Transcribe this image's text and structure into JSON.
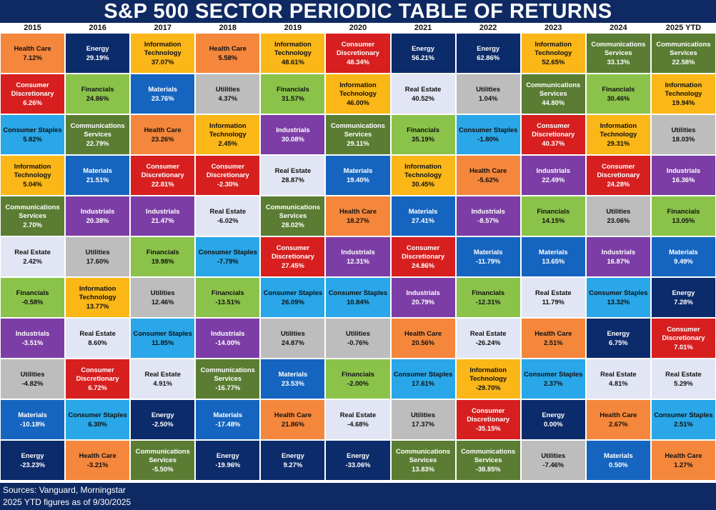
{
  "title": "S&P 500 SECTOR PERIODIC TABLE OF RETURNS",
  "footer": {
    "sources": "Sources: Vanguard, Morningstar",
    "note": "2025 YTD figures as of 9/30/2025"
  },
  "colors": {
    "Health Care": "#f5873c",
    "Consumer Discretionary": "#d71f1f",
    "Consumer Staples": "#29a7e8",
    "Information Technology": "#fbb717",
    "Communications Services": "#5a7d33",
    "Real Estate": "#e2e6f4",
    "Financials": "#8bc34a",
    "Industrials": "#7c3ea6",
    "Utilities": "#bdbdbd",
    "Materials": "#1565c0",
    "Energy": "#0c2b6a"
  },
  "text_colors": {
    "Health Care": "#111111",
    "Consumer Discretionary": "#ffffff",
    "Consumer Staples": "#111111",
    "Information Technology": "#111111",
    "Communications Services": "#ffffff",
    "Real Estate": "#111111",
    "Financials": "#111111",
    "Industrials": "#ffffff",
    "Utilities": "#111111",
    "Materials": "#ffffff",
    "Energy": "#ffffff"
  },
  "chart_data": {
    "type": "table",
    "title": "S&P 500 SECTOR PERIODIC TABLE OF RETURNS",
    "years": [
      "2015",
      "2016",
      "2017",
      "2018",
      "2019",
      "2020",
      "2021",
      "2022",
      "2023",
      "2024",
      "2025 YTD"
    ],
    "columns": [
      [
        {
          "sector": "Health Care",
          "label": "Health Care",
          "value": "7.12%"
        },
        {
          "sector": "Consumer Discretionary",
          "label": "Consumer\nDiscretionary",
          "value": "6.26%"
        },
        {
          "sector": "Consumer Staples",
          "label": "Consumer Staples",
          "value": "5.82%"
        },
        {
          "sector": "Information Technology",
          "label": "Information\nTechnology",
          "value": "5.04%"
        },
        {
          "sector": "Communications Services",
          "label": "Communications\nServices",
          "value": "2.70%"
        },
        {
          "sector": "Real Estate",
          "label": "Real Estate",
          "value": "2.42%"
        },
        {
          "sector": "Financials",
          "label": "Financials",
          "value": "-0.58%"
        },
        {
          "sector": "Industrials",
          "label": "Industrials",
          "value": "-3.51%"
        },
        {
          "sector": "Utilities",
          "label": "Utilities",
          "value": "-4.82%"
        },
        {
          "sector": "Materials",
          "label": "Materials",
          "value": "-10.18%"
        },
        {
          "sector": "Energy",
          "label": "Energy",
          "value": "-23.23%"
        }
      ],
      [
        {
          "sector": "Energy",
          "label": "Energy",
          "value": "29.19%"
        },
        {
          "sector": "Financials",
          "label": "Financials",
          "value": "24.86%"
        },
        {
          "sector": "Communications Services",
          "label": "Communications\nServices",
          "value": "22.79%"
        },
        {
          "sector": "Materials",
          "label": "Materials",
          "value": "21.51%"
        },
        {
          "sector": "Industrials",
          "label": "Industrials",
          "value": "20.38%"
        },
        {
          "sector": "Utilities",
          "label": "Utilities",
          "value": "17.60%"
        },
        {
          "sector": "Information Technology",
          "label": "Information\nTechnology",
          "value": "13.77%"
        },
        {
          "sector": "Real Estate",
          "label": "Real Estate",
          "value": "8.60%"
        },
        {
          "sector": "Consumer Discretionary",
          "label": "Consumer\nDiscretionary",
          "value": "6.72%"
        },
        {
          "sector": "Consumer Staples",
          "label": "Consumer Staples",
          "value": "6.30%"
        },
        {
          "sector": "Health Care",
          "label": "Health Care",
          "value": "-3.21%"
        }
      ],
      [
        {
          "sector": "Information Technology",
          "label": "Information\nTechnology",
          "value": "37.07%"
        },
        {
          "sector": "Materials",
          "label": "Materials",
          "value": "23.76%"
        },
        {
          "sector": "Health Care",
          "label": "Health Care",
          "value": "23.26%"
        },
        {
          "sector": "Consumer Discretionary",
          "label": "Consumer\nDiscretionary",
          "value": "22.81%"
        },
        {
          "sector": "Industrials",
          "label": "Industrials",
          "value": "21.47%"
        },
        {
          "sector": "Financials",
          "label": "Financials",
          "value": "19.98%"
        },
        {
          "sector": "Utilities",
          "label": "Utilities",
          "value": "12.46%"
        },
        {
          "sector": "Consumer Staples",
          "label": "Consumer Staples",
          "value": "11.85%"
        },
        {
          "sector": "Real Estate",
          "label": "Real Estate",
          "value": "4.91%"
        },
        {
          "sector": "Energy",
          "label": "Energy",
          "value": "-2.50%"
        },
        {
          "sector": "Communications Services",
          "label": "Communications\nServices",
          "value": "-5.50%"
        }
      ],
      [
        {
          "sector": "Health Care",
          "label": "Health Care",
          "value": "5.58%"
        },
        {
          "sector": "Utilities",
          "label": "Utilities",
          "value": "4.37%"
        },
        {
          "sector": "Information Technology",
          "label": "Information\nTechnology",
          "value": "2.45%"
        },
        {
          "sector": "Consumer Discretionary",
          "label": "Consumer\nDiscretionary",
          "value": "-2.30%"
        },
        {
          "sector": "Real Estate",
          "label": "Real Estate",
          "value": "-6.02%"
        },
        {
          "sector": "Consumer Staples",
          "label": "Consumer Staples",
          "value": "-7.79%"
        },
        {
          "sector": "Financials",
          "label": "Financials",
          "value": "-13.51%"
        },
        {
          "sector": "Industrials",
          "label": "Industrials",
          "value": "-14.00%"
        },
        {
          "sector": "Communications Services",
          "label": "Communications\nServices",
          "value": "-16.77%"
        },
        {
          "sector": "Materials",
          "label": "Materials",
          "value": "-17.48%"
        },
        {
          "sector": "Energy",
          "label": "Energy",
          "value": "-19.96%"
        }
      ],
      [
        {
          "sector": "Information Technology",
          "label": "Information\nTechnology",
          "value": "48.61%"
        },
        {
          "sector": "Financials",
          "label": "Financials",
          "value": "31.57%"
        },
        {
          "sector": "Industrials",
          "label": "Industrials",
          "value": "30.08%"
        },
        {
          "sector": "Real Estate",
          "label": "Real Estate",
          "value": "28.87%"
        },
        {
          "sector": "Communications Services",
          "label": "Communications\nServices",
          "value": "28.02%"
        },
        {
          "sector": "Consumer Discretionary",
          "label": "Consumer\nDiscretionary",
          "value": "27.45%"
        },
        {
          "sector": "Consumer Staples",
          "label": "Consumer Staples",
          "value": "26.09%"
        },
        {
          "sector": "Utilities",
          "label": "Utilities",
          "value": "24.87%"
        },
        {
          "sector": "Materials",
          "label": "Materials",
          "value": "23.53%"
        },
        {
          "sector": "Health Care",
          "label": "Health Care",
          "value": "21.86%"
        },
        {
          "sector": "Energy",
          "label": "Energy",
          "value": "9.27%"
        }
      ],
      [
        {
          "sector": "Consumer Discretionary",
          "label": "Consumer\nDiscretionary",
          "value": "48.34%"
        },
        {
          "sector": "Information Technology",
          "label": "Information\nTechnology",
          "value": "46.00%"
        },
        {
          "sector": "Communications Services",
          "label": "Communications\nServices",
          "value": "29.11%"
        },
        {
          "sector": "Materials",
          "label": "Materials",
          "value": "19.40%"
        },
        {
          "sector": "Health Care",
          "label": "Health Care",
          "value": "18.27%"
        },
        {
          "sector": "Industrials",
          "label": "Industrials",
          "value": "12.31%"
        },
        {
          "sector": "Consumer Staples",
          "label": "Consumer Staples",
          "value": "10.84%"
        },
        {
          "sector": "Utilities",
          "label": "Utilities",
          "value": "-0.76%"
        },
        {
          "sector": "Financials",
          "label": "Financials",
          "value": "-2.00%"
        },
        {
          "sector": "Real Estate",
          "label": "Real Estate",
          "value": "-4.68%"
        },
        {
          "sector": "Energy",
          "label": "Energy",
          "value": "-33.06%"
        }
      ],
      [
        {
          "sector": "Energy",
          "label": "Energy",
          "value": "56.21%"
        },
        {
          "sector": "Real Estate",
          "label": "Real Estate",
          "value": "40.52%"
        },
        {
          "sector": "Financials",
          "label": "Financials",
          "value": "35.19%"
        },
        {
          "sector": "Information Technology",
          "label": "Information\nTechnology",
          "value": "30.45%"
        },
        {
          "sector": "Materials",
          "label": "Materials",
          "value": "27.41%"
        },
        {
          "sector": "Consumer Discretionary",
          "label": "Consumer\nDiscretionary",
          "value": "24.86%"
        },
        {
          "sector": "Industrials",
          "label": "Industrials",
          "value": "20.79%"
        },
        {
          "sector": "Health Care",
          "label": "Health Care",
          "value": "20.56%"
        },
        {
          "sector": "Consumer Staples",
          "label": "Consumer Staples",
          "value": "17.61%"
        },
        {
          "sector": "Utilities",
          "label": "Utilities",
          "value": "17.37%"
        },
        {
          "sector": "Communications Services",
          "label": "Communications\nServices",
          "value": "13.83%"
        }
      ],
      [
        {
          "sector": "Energy",
          "label": "Energy",
          "value": "62.86%"
        },
        {
          "sector": "Utilities",
          "label": "Utilities",
          "value": "1.04%"
        },
        {
          "sector": "Consumer Staples",
          "label": "Consumer Staples",
          "value": "-1.80%"
        },
        {
          "sector": "Health Care",
          "label": "Health Care",
          "value": "-5.62%"
        },
        {
          "sector": "Industrials",
          "label": "Industrials",
          "value": "-8.57%"
        },
        {
          "sector": "Materials",
          "label": "Materials",
          "value": "-11.79%"
        },
        {
          "sector": "Financials",
          "label": "Financials",
          "value": "-12.31%"
        },
        {
          "sector": "Real Estate",
          "label": "Real Estate",
          "value": "-26.24%"
        },
        {
          "sector": "Information Technology",
          "label": "Information\nTechnology",
          "value": "-29.70%"
        },
        {
          "sector": "Consumer Discretionary",
          "label": "Consumer\nDiscretionary",
          "value": "-35.15%"
        },
        {
          "sector": "Communications Services",
          "label": "Communications\nServices",
          "value": "-38.85%"
        }
      ],
      [
        {
          "sector": "Information Technology",
          "label": "Information\nTechnology",
          "value": "52.65%"
        },
        {
          "sector": "Communications Services",
          "label": "Communications\nServices",
          "value": "44.80%"
        },
        {
          "sector": "Consumer Discretionary",
          "label": "Consumer\nDiscretionary",
          "value": "40.37%"
        },
        {
          "sector": "Industrials",
          "label": "Industrials",
          "value": "22.49%"
        },
        {
          "sector": "Financials",
          "label": "Financials",
          "value": "14.15%"
        },
        {
          "sector": "Materials",
          "label": "Materials",
          "value": "13.65%"
        },
        {
          "sector": "Real Estate",
          "label": "Real Estate",
          "value": "11.79%"
        },
        {
          "sector": "Health Care",
          "label": "Health Care",
          "value": "2.51%"
        },
        {
          "sector": "Consumer Staples",
          "label": "Consumer Staples",
          "value": "2.37%"
        },
        {
          "sector": "Energy",
          "label": "Energy",
          "value": "0.00%"
        },
        {
          "sector": "Utilities",
          "label": "Utilities",
          "value": "-7.46%"
        }
      ],
      [
        {
          "sector": "Communications Services",
          "label": "Communications\nServices",
          "value": "33.13%"
        },
        {
          "sector": "Financials",
          "label": "Financials",
          "value": "30.46%"
        },
        {
          "sector": "Information Technology",
          "label": "Information\nTechnology",
          "value": "29.31%"
        },
        {
          "sector": "Consumer Discretionary",
          "label": "Consumer\nDiscretionary",
          "value": "24.28%"
        },
        {
          "sector": "Utilities",
          "label": "Utilities",
          "value": "23.06%"
        },
        {
          "sector": "Industrials",
          "label": "Industrials",
          "value": "16.87%"
        },
        {
          "sector": "Consumer Staples",
          "label": "Consumer Staples",
          "value": "13.32%"
        },
        {
          "sector": "Energy",
          "label": "Energy",
          "value": "6.75%"
        },
        {
          "sector": "Real Estate",
          "label": "Real Estate",
          "value": "4.81%"
        },
        {
          "sector": "Health Care",
          "label": "Health Care",
          "value": "2.67%"
        },
        {
          "sector": "Materials",
          "label": "Materials",
          "value": "0.50%"
        }
      ],
      [
        {
          "sector": "Communications Services",
          "label": "Communications\nServices",
          "value": "22.58%"
        },
        {
          "sector": "Information Technology",
          "label": "Information\nTechnology",
          "value": "19.94%"
        },
        {
          "sector": "Utilities",
          "label": "Utilities",
          "value": "18.03%"
        },
        {
          "sector": "Industrials",
          "label": "Industrials",
          "value": "16.36%"
        },
        {
          "sector": "Financials",
          "label": "Financials",
          "value": "13.05%"
        },
        {
          "sector": "Materials",
          "label": "Materials",
          "value": "9.49%"
        },
        {
          "sector": "Energy",
          "label": "Energy",
          "value": "7.28%"
        },
        {
          "sector": "Consumer Discretionary",
          "label": "Consumer\nDiscretionary",
          "value": "7.01%"
        },
        {
          "sector": "Real Estate",
          "label": "Real Estate",
          "value": "5.29%"
        },
        {
          "sector": "Consumer Staples",
          "label": "Consumer Staples",
          "value": "2.51%"
        },
        {
          "sector": "Health Care",
          "label": "Health Care",
          "value": "1.27%"
        }
      ]
    ]
  }
}
